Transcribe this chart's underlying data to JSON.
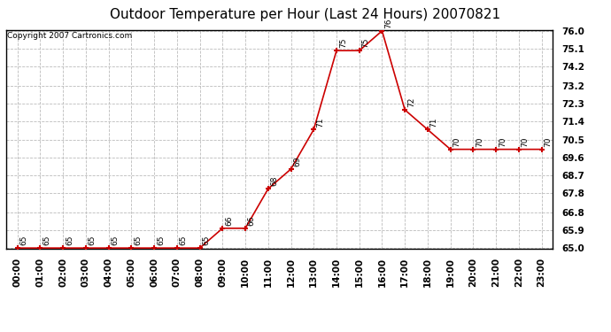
{
  "title": "Outdoor Temperature per Hour (Last 24 Hours) 20070821",
  "copyright": "Copyright 2007 Cartronics.com",
  "hours": [
    "00:00",
    "01:00",
    "02:00",
    "03:00",
    "04:00",
    "05:00",
    "06:00",
    "07:00",
    "08:00",
    "09:00",
    "10:00",
    "11:00",
    "12:00",
    "13:00",
    "14:00",
    "15:00",
    "16:00",
    "17:00",
    "18:00",
    "19:00",
    "20:00",
    "21:00",
    "22:00",
    "23:00"
  ],
  "temperatures": [
    65,
    65,
    65,
    65,
    65,
    65,
    65,
    65,
    65,
    66,
    66,
    68,
    69,
    71,
    75,
    75,
    76,
    72,
    71,
    70,
    70,
    70,
    70,
    70
  ],
  "line_color": "#cc0000",
  "marker_color": "#cc0000",
  "background_color": "#ffffff",
  "grid_color": "#bbbbbb",
  "ylim_min": 65.0,
  "ylim_max": 76.0,
  "yticks": [
    65.0,
    65.9,
    66.8,
    67.8,
    68.7,
    69.6,
    70.5,
    71.4,
    72.3,
    73.2,
    74.2,
    75.1,
    76.0
  ],
  "title_fontsize": 11,
  "copyright_fontsize": 6.5,
  "label_fontsize": 6,
  "tick_fontsize": 7.5,
  "annot_fontsize": 6.5
}
